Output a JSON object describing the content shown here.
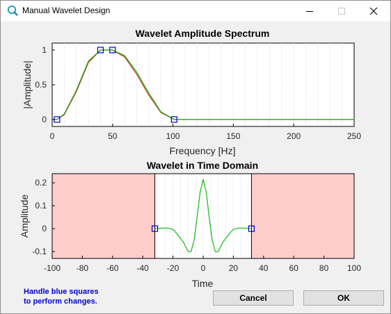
{
  "window": {
    "title": "Manual Wavelet Design"
  },
  "colors": {
    "control_square": "#0000cc",
    "spectrum_green": "#22aa22",
    "spectrum_red": "#d04020",
    "wavelet_green": "#22bb22",
    "shade": "#ffcccc"
  },
  "spectrum_chart": {
    "title": "Wavelet Amplitude Spectrum",
    "xlabel": "Frequency [Hz]",
    "ylabel": "|Amplitude|",
    "xticks": [
      "0",
      "50",
      "100",
      "150",
      "200",
      "250"
    ],
    "yticks": [
      "0",
      "0.5",
      "1"
    ]
  },
  "time_chart": {
    "title": "Wavelet in Time Domain",
    "xlabel": "Time",
    "ylabel": "Amplitude",
    "xticks": [
      "-100",
      "-80",
      "-60",
      "-40",
      "-20",
      "0",
      "20",
      "40",
      "60",
      "80",
      "100"
    ],
    "yticks": [
      "-0.1",
      "0",
      "0.1",
      "0.2"
    ]
  },
  "chart_data": [
    {
      "type": "line",
      "title": "Wavelet Amplitude Spectrum",
      "xlabel": "Frequency [Hz]",
      "ylabel": "|Amplitude|",
      "xlim": [
        0,
        250
      ],
      "ylim": [
        -0.1,
        1.1
      ],
      "grid": "x-dotted",
      "series": [
        {
          "x": [
            0,
            4,
            10,
            20,
            30,
            40,
            45,
            50,
            60,
            70,
            80,
            90,
            101,
            150,
            200,
            250
          ],
          "y": [
            0,
            0,
            0.07,
            0.4,
            0.82,
            1.0,
            1.0,
            1.0,
            0.9,
            0.65,
            0.35,
            0.1,
            0,
            0,
            0,
            0
          ]
        },
        {
          "x": [
            0,
            4,
            10,
            20,
            30,
            40,
            45,
            50,
            60,
            70,
            80,
            90,
            101,
            150,
            200,
            250
          ],
          "y": [
            0,
            0,
            0.08,
            0.42,
            0.84,
            1.0,
            1.0,
            1.0,
            0.92,
            0.68,
            0.38,
            0.11,
            0,
            0,
            0,
            0
          ]
        }
      ],
      "control_points": [
        {
          "x": 4,
          "y": 0
        },
        {
          "x": 40,
          "y": 1
        },
        {
          "x": 50,
          "y": 1
        },
        {
          "x": 101,
          "y": 0
        }
      ]
    },
    {
      "type": "line",
      "title": "Wavelet in Time Domain",
      "xlabel": "Time",
      "ylabel": "Amplitude",
      "xlim": [
        -100,
        100
      ],
      "ylim": [
        -0.13,
        0.24
      ],
      "grid": "x-dotted",
      "shaded_ranges": [
        [
          -100,
          -32
        ],
        [
          32,
          100
        ]
      ],
      "series": [
        {
          "x": [
            -32,
            -28,
            -24,
            -20,
            -17,
            -13,
            -10,
            -8,
            -6,
            -4,
            -2,
            0,
            2,
            4,
            6,
            8,
            10,
            13,
            17,
            20,
            24,
            28,
            32
          ],
          "y": [
            0,
            0.002,
            0.003,
            -0.003,
            -0.025,
            -0.06,
            -0.1,
            -0.1,
            -0.05,
            0.05,
            0.16,
            0.215,
            0.16,
            0.05,
            -0.05,
            -0.1,
            -0.1,
            -0.06,
            -0.025,
            -0.003,
            0.003,
            0.002,
            0
          ]
        }
      ],
      "control_points": [
        {
          "x": -32,
          "y": 0
        },
        {
          "x": 32,
          "y": 0
        }
      ]
    }
  ],
  "footer": {
    "hint_line1": "Handle blue squares",
    "hint_line2": "to perform changes.",
    "cancel_label": "Cancel",
    "ok_label": "OK"
  }
}
